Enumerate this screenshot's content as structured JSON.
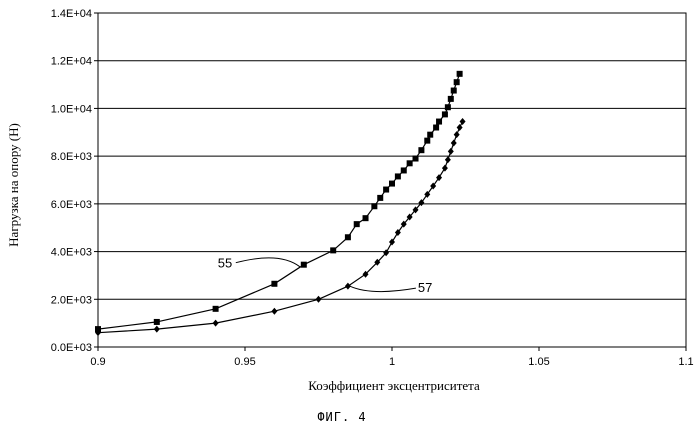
{
  "chart_data": {
    "type": "line",
    "xlabel": "Коэффициент эксцентриситета",
    "ylabel": "Нагрузка на опору (Н)",
    "figure_label": "ФИГ. 4",
    "xlim": [
      0.9,
      1.1
    ],
    "ylim": [
      0,
      14000
    ],
    "x_ticks": [
      0.9,
      0.95,
      1,
      1.05,
      1.1
    ],
    "x_tick_labels": [
      "0.9",
      "0.95",
      "1",
      "1.05",
      "1.1"
    ],
    "y_ticks": [
      0,
      2000,
      4000,
      6000,
      8000,
      10000,
      12000,
      14000
    ],
    "y_tick_labels": [
      "0.0E+03",
      "2.0E+03",
      "4.0E+03",
      "6.0E+03",
      "8.0E+03",
      "1.0E+04",
      "1.2E+04",
      "1.4E+04"
    ],
    "grid": "horizontal",
    "series": [
      {
        "name": "55",
        "marker": "square",
        "points": [
          [
            0.9,
            750
          ],
          [
            0.92,
            1050
          ],
          [
            0.94,
            1600
          ],
          [
            0.96,
            2650
          ],
          [
            0.97,
            3450
          ],
          [
            0.98,
            4050
          ],
          [
            0.985,
            4600
          ],
          [
            0.988,
            5150
          ],
          [
            0.991,
            5400
          ],
          [
            0.994,
            5900
          ],
          [
            0.996,
            6250
          ],
          [
            0.998,
            6600
          ],
          [
            1.0,
            6850
          ],
          [
            1.002,
            7150
          ],
          [
            1.004,
            7400
          ],
          [
            1.006,
            7700
          ],
          [
            1.008,
            7900
          ],
          [
            1.01,
            8250
          ],
          [
            1.012,
            8650
          ],
          [
            1.013,
            8900
          ],
          [
            1.015,
            9200
          ],
          [
            1.016,
            9450
          ],
          [
            1.018,
            9750
          ],
          [
            1.019,
            10050
          ],
          [
            1.02,
            10400
          ],
          [
            1.021,
            10750
          ],
          [
            1.022,
            11100
          ],
          [
            1.023,
            11450
          ]
        ]
      },
      {
        "name": "57",
        "marker": "diamond",
        "points": [
          [
            0.9,
            600
          ],
          [
            0.92,
            750
          ],
          [
            0.94,
            1000
          ],
          [
            0.96,
            1500
          ],
          [
            0.975,
            2000
          ],
          [
            0.985,
            2550
          ],
          [
            0.991,
            3050
          ],
          [
            0.995,
            3550
          ],
          [
            0.998,
            3950
          ],
          [
            1.0,
            4400
          ],
          [
            1.002,
            4800
          ],
          [
            1.004,
            5150
          ],
          [
            1.006,
            5450
          ],
          [
            1.008,
            5750
          ],
          [
            1.01,
            6050
          ],
          [
            1.012,
            6400
          ],
          [
            1.014,
            6750
          ],
          [
            1.016,
            7100
          ],
          [
            1.018,
            7500
          ],
          [
            1.019,
            7850
          ],
          [
            1.02,
            8200
          ],
          [
            1.021,
            8550
          ],
          [
            1.022,
            8900
          ],
          [
            1.023,
            9200
          ],
          [
            1.024,
            9450
          ]
        ]
      }
    ],
    "annotations": [
      {
        "text": "55",
        "series": 0
      },
      {
        "text": "57",
        "series": 1
      }
    ]
  }
}
